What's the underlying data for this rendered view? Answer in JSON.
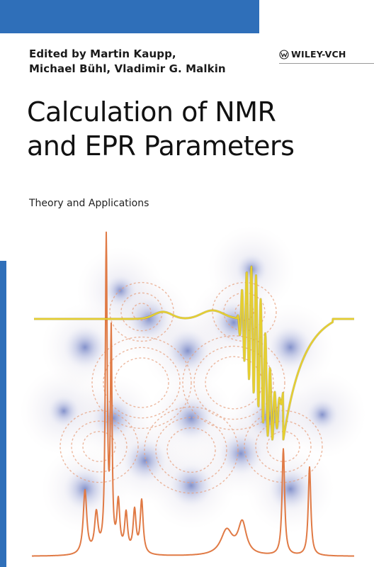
{
  "editors": {
    "line1": "Edited by Martin Kaupp,",
    "line2": "Michael Bühl, Vladimir G. Malkin"
  },
  "publisher": {
    "name": "WILEY-VCH",
    "logo_icon": "wiley-logo-icon"
  },
  "title": {
    "line1": "Calculation of NMR",
    "line2": "and EPR Parameters"
  },
  "subtitle": "Theory and Applications",
  "colors": {
    "accent_blue": "#2f6fb9",
    "nmr_spectrum": "#e07a45",
    "epr_spectrum": "#e6cf2e",
    "density_glow": "#7d8fc7",
    "field_lines": "#e7a17f"
  }
}
